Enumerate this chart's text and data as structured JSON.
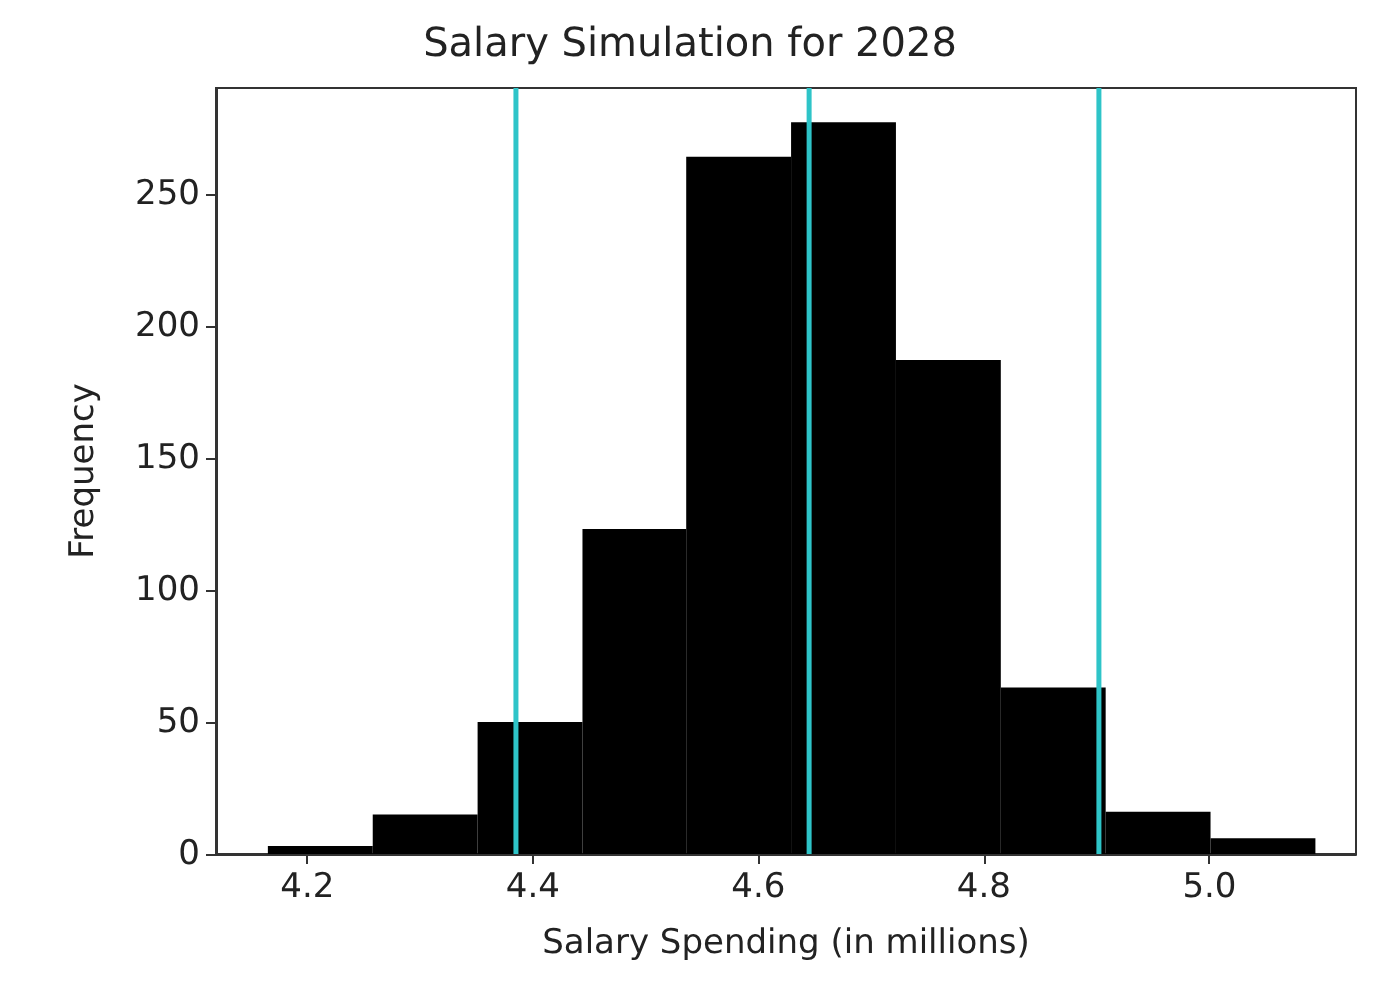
{
  "chart_data": {
    "type": "histogram",
    "title": "Salary Simulation for 2028",
    "xlabel": "Salary Spending (in millions)",
    "ylabel": "Frequency",
    "bins": [
      4.165,
      4.258,
      4.351,
      4.444,
      4.536,
      4.629,
      4.722,
      4.815,
      4.908,
      5.001,
      5.094
    ],
    "values": [
      3,
      15,
      50,
      123,
      264,
      277,
      187,
      63,
      16,
      6
    ],
    "color": "#000000",
    "xlim": [
      4.119,
      5.13
    ],
    "xticks": [
      {
        "value": 4.2,
        "label": "4.2"
      },
      {
        "value": 4.4,
        "label": "4.4"
      },
      {
        "value": 4.6,
        "label": "4.6"
      },
      {
        "value": 4.8,
        "label": "4.8"
      },
      {
        "value": 5.0,
        "label": "5.0"
      }
    ],
    "ylim": [
      0,
      290
    ],
    "yticks": [
      0,
      50,
      100,
      150,
      200,
      250
    ],
    "ref_lines": [
      {
        "axis": "x",
        "value": 4.385,
        "color": "#2ec4c8"
      },
      {
        "axis": "x",
        "value": 4.645,
        "color": "#2ec4c8"
      },
      {
        "axis": "x",
        "value": 4.902,
        "color": "#2ec4c8"
      }
    ],
    "grid": false,
    "legend": false
  }
}
